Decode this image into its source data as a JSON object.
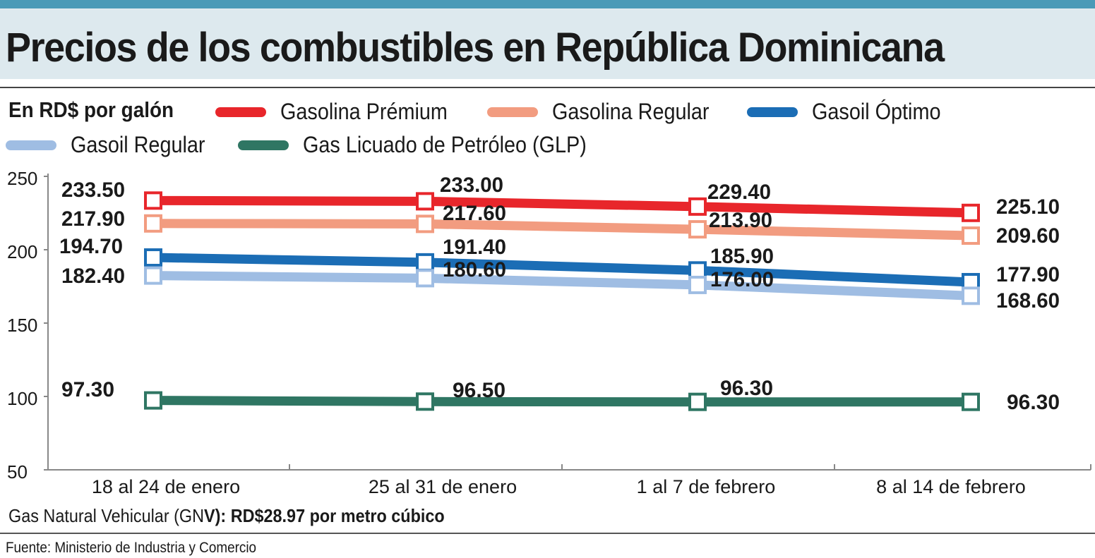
{
  "header": {
    "title": "Precios de los combustibles en República Dominicana"
  },
  "legend": {
    "unit_label": "En RD$ por galón"
  },
  "note": {
    "prefix": "Gas Natural Vehicular (GN",
    "bold_part": "V): RD$28.97 por metro cúbico"
  },
  "source": "Fuente: Ministerio de Industria y Comercio",
  "chart_data": {
    "type": "line",
    "title": "Precios de los combustibles en República Dominicana",
    "ylabel": "En RD$ por galón",
    "xlabel": "",
    "ylim": [
      50,
      250
    ],
    "yticks": [
      50,
      100,
      150,
      200,
      250
    ],
    "categories": [
      "18 al 24 de enero",
      "25 al 31 de enero",
      "1 al 7 de febrero",
      "8 al 14 de febrero"
    ],
    "grid": false,
    "legend_position": "top",
    "series": [
      {
        "name": "Gasolina Prémium",
        "color": "#e8262b",
        "values": [
          233.5,
          233.0,
          229.4,
          225.1
        ],
        "labels": [
          "233.50",
          "233.00",
          "229.40",
          "225.10"
        ]
      },
      {
        "name": "Gasolina Regular",
        "color": "#f29c80",
        "values": [
          217.9,
          217.6,
          213.9,
          209.6
        ],
        "labels": [
          "217.90",
          "217.60",
          "213.90",
          "209.60"
        ]
      },
      {
        "name": "Gasoil Óptimo",
        "color": "#1b6db5",
        "values": [
          194.7,
          191.4,
          185.9,
          177.9
        ],
        "labels": [
          "194.70",
          "191.40",
          "185.90",
          "177.90"
        ]
      },
      {
        "name": "Gasoil Regular",
        "color": "#9fbde3",
        "values": [
          182.4,
          180.6,
          176.0,
          168.6
        ],
        "labels": [
          "182.40",
          "180.60",
          "176.00",
          "168.60"
        ]
      },
      {
        "name": "Gas Licuado de Petróleo (GLP)",
        "color": "#2f7663",
        "values": [
          97.3,
          96.5,
          96.3,
          96.3
        ],
        "labels": [
          "97.30",
          "96.50",
          "96.30",
          "96.30"
        ]
      }
    ]
  }
}
